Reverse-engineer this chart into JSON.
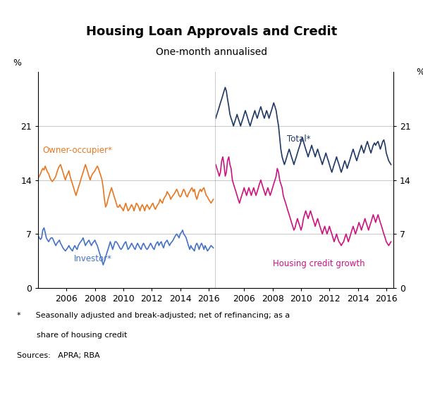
{
  "title": "Housing Loan Approvals and Credit",
  "subtitle": "One-month annualised",
  "ylabel_left": "%",
  "ylabel_right": "%",
  "ylim": [
    0,
    28
  ],
  "yticks": [
    0,
    7,
    14,
    21
  ],
  "footnote1": "*      Seasonally adjusted and break-adjusted; net of refinancing; as a",
  "footnote2": "        share of housing credit",
  "footnote3": "Sources:   APRA; RBA",
  "colors": {
    "owner_occupier": "#E87722",
    "investor": "#4472C4",
    "total": "#1F3864",
    "housing_credit": "#CC1480"
  },
  "left_panel": {
    "xlim": [
      2004.0,
      2016.5
    ],
    "xticks": [
      2006,
      2008,
      2010,
      2012,
      2014,
      2016
    ],
    "owner_occupier": {
      "x": [
        2004.0,
        2004.08,
        2004.17,
        2004.25,
        2004.33,
        2004.42,
        2004.5,
        2004.58,
        2004.67,
        2004.75,
        2004.83,
        2004.92,
        2005.0,
        2005.08,
        2005.17,
        2005.25,
        2005.33,
        2005.42,
        2005.5,
        2005.58,
        2005.67,
        2005.75,
        2005.83,
        2005.92,
        2006.0,
        2006.08,
        2006.17,
        2006.25,
        2006.33,
        2006.42,
        2006.5,
        2006.58,
        2006.67,
        2006.75,
        2006.83,
        2006.92,
        2007.0,
        2007.08,
        2007.17,
        2007.25,
        2007.33,
        2007.42,
        2007.5,
        2007.58,
        2007.67,
        2007.75,
        2007.83,
        2007.92,
        2008.0,
        2008.08,
        2008.17,
        2008.25,
        2008.33,
        2008.42,
        2008.5,
        2008.58,
        2008.67,
        2008.75,
        2008.83,
        2008.92,
        2009.0,
        2009.08,
        2009.17,
        2009.25,
        2009.33,
        2009.42,
        2009.5,
        2009.58,
        2009.67,
        2009.75,
        2009.83,
        2009.92,
        2010.0,
        2010.08,
        2010.17,
        2010.25,
        2010.33,
        2010.42,
        2010.5,
        2010.58,
        2010.67,
        2010.75,
        2010.83,
        2010.92,
        2011.0,
        2011.08,
        2011.17,
        2011.25,
        2011.33,
        2011.42,
        2011.5,
        2011.58,
        2011.67,
        2011.75,
        2011.83,
        2011.92,
        2012.0,
        2012.08,
        2012.17,
        2012.25,
        2012.33,
        2012.42,
        2012.5,
        2012.58,
        2012.67,
        2012.75,
        2012.83,
        2012.92,
        2013.0,
        2013.08,
        2013.17,
        2013.25,
        2013.33,
        2013.42,
        2013.5,
        2013.58,
        2013.67,
        2013.75,
        2013.83,
        2013.92,
        2014.0,
        2014.08,
        2014.17,
        2014.25,
        2014.33,
        2014.42,
        2014.5,
        2014.58,
        2014.67,
        2014.75,
        2014.83,
        2014.92,
        2015.0,
        2015.08,
        2015.17,
        2015.25,
        2015.33,
        2015.42,
        2015.5,
        2015.58,
        2015.67,
        2015.75,
        2015.83,
        2015.92,
        2016.0,
        2016.17,
        2016.33
      ],
      "y": [
        14.2,
        14.5,
        14.8,
        15.2,
        15.5,
        15.3,
        15.8,
        15.4,
        15.0,
        14.8,
        14.3,
        14.0,
        13.8,
        14.0,
        14.2,
        14.5,
        15.0,
        15.5,
        15.8,
        16.0,
        15.5,
        15.0,
        14.5,
        14.0,
        14.5,
        14.8,
        15.2,
        14.5,
        14.0,
        13.5,
        13.0,
        12.5,
        12.0,
        12.5,
        13.0,
        13.5,
        14.0,
        14.5,
        15.0,
        15.5,
        16.0,
        15.5,
        15.0,
        14.5,
        14.0,
        14.5,
        14.8,
        15.0,
        15.2,
        15.5,
        15.8,
        15.5,
        15.0,
        14.5,
        14.0,
        13.0,
        11.5,
        10.5,
        10.8,
        11.5,
        12.0,
        12.5,
        13.0,
        12.5,
        12.0,
        11.5,
        11.0,
        10.5,
        10.5,
        10.8,
        10.5,
        10.3,
        10.0,
        10.5,
        11.0,
        10.5,
        10.0,
        10.2,
        10.5,
        10.8,
        10.5,
        10.0,
        10.5,
        11.0,
        10.8,
        10.5,
        10.0,
        10.5,
        10.8,
        10.5,
        10.0,
        10.5,
        10.8,
        10.5,
        10.2,
        10.5,
        10.8,
        11.0,
        10.5,
        10.2,
        10.5,
        10.8,
        11.0,
        11.5,
        11.2,
        11.0,
        11.5,
        11.8,
        12.0,
        12.5,
        12.2,
        12.0,
        11.5,
        11.8,
        12.0,
        12.2,
        12.5,
        12.8,
        12.5,
        12.0,
        11.8,
        12.0,
        12.5,
        12.8,
        12.5,
        12.0,
        11.8,
        12.2,
        12.5,
        12.8,
        13.0,
        12.5,
        12.8,
        12.0,
        11.5,
        12.0,
        12.5,
        12.8,
        12.5,
        12.8,
        13.0,
        12.5,
        12.0,
        11.8,
        11.5,
        11.0,
        11.5
      ]
    },
    "investor": {
      "x": [
        2004.0,
        2004.08,
        2004.17,
        2004.25,
        2004.33,
        2004.42,
        2004.5,
        2004.58,
        2004.67,
        2004.75,
        2004.83,
        2004.92,
        2005.0,
        2005.08,
        2005.17,
        2005.25,
        2005.33,
        2005.42,
        2005.5,
        2005.58,
        2005.67,
        2005.75,
        2005.83,
        2005.92,
        2006.0,
        2006.08,
        2006.17,
        2006.25,
        2006.33,
        2006.42,
        2006.5,
        2006.58,
        2006.67,
        2006.75,
        2006.83,
        2006.92,
        2007.0,
        2007.08,
        2007.17,
        2007.25,
        2007.33,
        2007.42,
        2007.5,
        2007.58,
        2007.67,
        2007.75,
        2007.83,
        2007.92,
        2008.0,
        2008.08,
        2008.17,
        2008.25,
        2008.33,
        2008.42,
        2008.5,
        2008.58,
        2008.67,
        2008.75,
        2008.83,
        2008.92,
        2009.0,
        2009.08,
        2009.17,
        2009.25,
        2009.33,
        2009.42,
        2009.5,
        2009.58,
        2009.67,
        2009.75,
        2009.83,
        2009.92,
        2010.0,
        2010.08,
        2010.17,
        2010.25,
        2010.33,
        2010.42,
        2010.5,
        2010.58,
        2010.67,
        2010.75,
        2010.83,
        2010.92,
        2011.0,
        2011.08,
        2011.17,
        2011.25,
        2011.33,
        2011.42,
        2011.5,
        2011.58,
        2011.67,
        2011.75,
        2011.83,
        2011.92,
        2012.0,
        2012.08,
        2012.17,
        2012.25,
        2012.33,
        2012.42,
        2012.5,
        2012.58,
        2012.67,
        2012.75,
        2012.83,
        2012.92,
        2013.0,
        2013.08,
        2013.17,
        2013.25,
        2013.33,
        2013.42,
        2013.5,
        2013.58,
        2013.67,
        2013.75,
        2013.83,
        2013.92,
        2014.0,
        2014.08,
        2014.17,
        2014.25,
        2014.33,
        2014.42,
        2014.5,
        2014.58,
        2014.67,
        2014.75,
        2014.83,
        2014.92,
        2015.0,
        2015.08,
        2015.17,
        2015.25,
        2015.33,
        2015.42,
        2015.5,
        2015.58,
        2015.67,
        2015.75,
        2015.83,
        2015.92,
        2016.0,
        2016.17,
        2016.33
      ],
      "y": [
        6.8,
        6.5,
        6.3,
        6.5,
        7.5,
        7.8,
        7.2,
        6.5,
        6.2,
        6.0,
        6.3,
        6.5,
        6.5,
        6.2,
        5.8,
        5.5,
        5.8,
        6.0,
        6.2,
        5.8,
        5.5,
        5.2,
        5.0,
        4.8,
        5.0,
        5.2,
        5.5,
        5.2,
        5.0,
        4.8,
        5.2,
        5.5,
        5.2,
        5.0,
        5.5,
        5.8,
        6.0,
        6.2,
        6.5,
        6.0,
        5.5,
        5.8,
        6.0,
        6.2,
        5.8,
        5.5,
        5.8,
        6.0,
        6.2,
        5.8,
        5.5,
        5.0,
        4.5,
        4.0,
        3.5,
        3.0,
        3.5,
        4.0,
        4.5,
        5.0,
        5.5,
        6.0,
        5.5,
        5.0,
        5.5,
        6.0,
        6.0,
        5.8,
        5.5,
        5.2,
        5.0,
        5.2,
        5.5,
        5.8,
        6.0,
        5.5,
        5.0,
        5.2,
        5.5,
        5.8,
        5.5,
        5.2,
        5.0,
        5.5,
        5.8,
        5.5,
        5.2,
        5.0,
        5.5,
        5.8,
        5.5,
        5.2,
        5.0,
        5.2,
        5.5,
        5.8,
        5.5,
        5.2,
        5.0,
        5.5,
        5.8,
        6.0,
        5.5,
        5.8,
        6.0,
        5.5,
        5.2,
        5.8,
        6.0,
        6.2,
        5.8,
        5.5,
        5.8,
        6.0,
        6.2,
        6.5,
        6.8,
        7.0,
        6.8,
        6.5,
        7.0,
        7.2,
        7.5,
        7.0,
        6.8,
        6.5,
        6.0,
        5.5,
        5.0,
        5.5,
        5.2,
        5.0,
        4.8,
        5.5,
        5.8,
        5.5,
        5.0,
        5.5,
        5.8,
        5.5,
        5.0,
        5.5,
        5.2,
        4.8,
        5.0,
        5.5,
        5.2
      ]
    }
  },
  "right_panel": {
    "xlim": [
      2004.0,
      2016.5
    ],
    "xticks": [
      2006,
      2008,
      2010,
      2012,
      2014,
      2016
    ],
    "total": {
      "x": [
        2004.0,
        2004.08,
        2004.17,
        2004.25,
        2004.33,
        2004.42,
        2004.5,
        2004.58,
        2004.67,
        2004.75,
        2004.83,
        2004.92,
        2005.0,
        2005.08,
        2005.17,
        2005.25,
        2005.33,
        2005.42,
        2005.5,
        2005.58,
        2005.67,
        2005.75,
        2005.83,
        2005.92,
        2006.0,
        2006.08,
        2006.17,
        2006.25,
        2006.33,
        2006.42,
        2006.5,
        2006.58,
        2006.67,
        2006.75,
        2006.83,
        2006.92,
        2007.0,
        2007.08,
        2007.17,
        2007.25,
        2007.33,
        2007.42,
        2007.5,
        2007.58,
        2007.67,
        2007.75,
        2007.83,
        2007.92,
        2008.0,
        2008.08,
        2008.17,
        2008.25,
        2008.33,
        2008.42,
        2008.5,
        2008.58,
        2008.67,
        2008.75,
        2008.83,
        2008.92,
        2009.0,
        2009.08,
        2009.17,
        2009.25,
        2009.33,
        2009.42,
        2009.5,
        2009.58,
        2009.67,
        2009.75,
        2009.83,
        2009.92,
        2010.0,
        2010.08,
        2010.17,
        2010.25,
        2010.33,
        2010.42,
        2010.5,
        2010.58,
        2010.67,
        2010.75,
        2010.83,
        2010.92,
        2011.0,
        2011.08,
        2011.17,
        2011.25,
        2011.33,
        2011.42,
        2011.5,
        2011.58,
        2011.67,
        2011.75,
        2011.83,
        2011.92,
        2012.0,
        2012.08,
        2012.17,
        2012.25,
        2012.33,
        2012.42,
        2012.5,
        2012.58,
        2012.67,
        2012.75,
        2012.83,
        2012.92,
        2013.0,
        2013.08,
        2013.17,
        2013.25,
        2013.33,
        2013.42,
        2013.5,
        2013.58,
        2013.67,
        2013.75,
        2013.83,
        2013.92,
        2014.0,
        2014.08,
        2014.17,
        2014.25,
        2014.33,
        2014.42,
        2014.5,
        2014.58,
        2014.67,
        2014.75,
        2014.83,
        2014.92,
        2015.0,
        2015.08,
        2015.17,
        2015.25,
        2015.33,
        2015.42,
        2015.5,
        2015.58,
        2015.67,
        2015.75,
        2015.83,
        2015.92,
        2016.0,
        2016.17,
        2016.33
      ],
      "y": [
        22.0,
        22.5,
        23.0,
        23.5,
        24.0,
        24.5,
        25.0,
        25.5,
        26.0,
        25.5,
        24.5,
        23.5,
        22.5,
        22.0,
        21.5,
        21.0,
        21.5,
        22.0,
        22.5,
        22.0,
        21.5,
        21.0,
        21.5,
        22.0,
        22.5,
        23.0,
        22.5,
        22.0,
        21.5,
        21.0,
        21.5,
        22.0,
        22.5,
        23.0,
        22.5,
        22.0,
        22.5,
        23.0,
        23.5,
        23.0,
        22.5,
        22.0,
        22.5,
        23.0,
        22.5,
        22.0,
        22.5,
        23.0,
        23.5,
        24.0,
        23.5,
        23.0,
        22.0,
        21.0,
        19.5,
        18.0,
        17.0,
        16.5,
        16.0,
        16.5,
        17.0,
        17.5,
        18.0,
        17.5,
        17.0,
        16.5,
        16.0,
        16.5,
        17.0,
        17.5,
        18.0,
        18.5,
        19.0,
        19.5,
        19.0,
        18.5,
        18.0,
        17.5,
        17.0,
        17.5,
        18.0,
        18.5,
        18.0,
        17.5,
        17.0,
        17.5,
        18.0,
        17.5,
        17.0,
        16.5,
        16.0,
        16.5,
        17.0,
        17.5,
        17.0,
        16.5,
        16.0,
        15.5,
        15.0,
        15.5,
        16.0,
        16.5,
        17.0,
        16.5,
        16.0,
        15.5,
        15.0,
        15.5,
        16.0,
        16.5,
        16.0,
        15.5,
        16.0,
        16.5,
        17.0,
        17.5,
        18.0,
        17.5,
        17.0,
        16.5,
        17.0,
        17.5,
        18.0,
        18.5,
        18.0,
        17.5,
        18.0,
        18.5,
        19.0,
        18.5,
        18.0,
        17.5,
        18.0,
        18.5,
        18.8,
        18.5,
        18.8,
        19.0,
        18.5,
        18.0,
        18.5,
        19.0,
        19.2,
        18.5,
        17.5,
        16.5,
        16.0
      ]
    },
    "housing_credit": {
      "x": [
        2004.0,
        2004.08,
        2004.17,
        2004.25,
        2004.33,
        2004.42,
        2004.5,
        2004.58,
        2004.67,
        2004.75,
        2004.83,
        2004.92,
        2005.0,
        2005.08,
        2005.17,
        2005.25,
        2005.33,
        2005.42,
        2005.5,
        2005.58,
        2005.67,
        2005.75,
        2005.83,
        2005.92,
        2006.0,
        2006.08,
        2006.17,
        2006.25,
        2006.33,
        2006.42,
        2006.5,
        2006.58,
        2006.67,
        2006.75,
        2006.83,
        2006.92,
        2007.0,
        2007.08,
        2007.17,
        2007.25,
        2007.33,
        2007.42,
        2007.5,
        2007.58,
        2007.67,
        2007.75,
        2007.83,
        2007.92,
        2008.0,
        2008.08,
        2008.17,
        2008.25,
        2008.33,
        2008.42,
        2008.5,
        2008.58,
        2008.67,
        2008.75,
        2008.83,
        2008.92,
        2009.0,
        2009.08,
        2009.17,
        2009.25,
        2009.33,
        2009.42,
        2009.5,
        2009.58,
        2009.67,
        2009.75,
        2009.83,
        2009.92,
        2010.0,
        2010.08,
        2010.17,
        2010.25,
        2010.33,
        2010.42,
        2010.5,
        2010.58,
        2010.67,
        2010.75,
        2010.83,
        2010.92,
        2011.0,
        2011.08,
        2011.17,
        2011.25,
        2011.33,
        2011.42,
        2011.5,
        2011.58,
        2011.67,
        2011.75,
        2011.83,
        2011.92,
        2012.0,
        2012.08,
        2012.17,
        2012.25,
        2012.33,
        2012.42,
        2012.5,
        2012.58,
        2012.67,
        2012.75,
        2012.83,
        2012.92,
        2013.0,
        2013.08,
        2013.17,
        2013.25,
        2013.33,
        2013.42,
        2013.5,
        2013.58,
        2013.67,
        2013.75,
        2013.83,
        2013.92,
        2014.0,
        2014.08,
        2014.17,
        2014.25,
        2014.33,
        2014.42,
        2014.5,
        2014.58,
        2014.67,
        2014.75,
        2014.83,
        2014.92,
        2015.0,
        2015.08,
        2015.17,
        2015.25,
        2015.33,
        2015.42,
        2015.5,
        2015.58,
        2015.67,
        2015.75,
        2015.83,
        2015.92,
        2016.0,
        2016.17,
        2016.33
      ],
      "y": [
        16.0,
        15.5,
        15.0,
        14.5,
        15.0,
        16.5,
        17.0,
        16.0,
        14.5,
        15.0,
        16.5,
        17.0,
        16.0,
        15.5,
        14.0,
        13.5,
        13.0,
        12.5,
        12.0,
        11.5,
        11.0,
        11.5,
        12.0,
        12.5,
        13.0,
        12.5,
        12.0,
        12.5,
        13.0,
        12.5,
        12.0,
        12.5,
        13.0,
        12.5,
        12.0,
        12.5,
        13.0,
        13.5,
        14.0,
        13.5,
        13.0,
        12.5,
        12.0,
        12.5,
        13.0,
        12.5,
        12.0,
        12.5,
        13.0,
        13.5,
        14.0,
        14.5,
        15.5,
        15.0,
        14.0,
        13.5,
        13.0,
        12.0,
        11.5,
        11.0,
        10.5,
        10.0,
        9.5,
        9.0,
        8.5,
        8.0,
        7.5,
        7.8,
        8.5,
        9.0,
        8.5,
        8.0,
        7.5,
        8.0,
        9.0,
        9.5,
        10.0,
        9.5,
        9.0,
        9.5,
        10.0,
        9.5,
        9.0,
        8.5,
        8.0,
        8.5,
        9.0,
        8.5,
        8.0,
        7.5,
        7.0,
        7.5,
        8.0,
        7.5,
        7.0,
        7.5,
        8.0,
        7.5,
        7.0,
        6.5,
        6.0,
        6.5,
        7.0,
        6.5,
        6.0,
        5.8,
        5.5,
        5.8,
        6.0,
        6.5,
        7.0,
        6.5,
        6.0,
        6.5,
        7.0,
        7.5,
        8.0,
        7.5,
        7.0,
        7.5,
        8.0,
        8.5,
        8.0,
        7.5,
        8.0,
        8.5,
        9.0,
        8.5,
        8.0,
        7.5,
        8.0,
        8.5,
        9.0,
        9.5,
        9.0,
        8.5,
        9.0,
        9.5,
        9.0,
        8.5,
        8.0,
        7.5,
        7.0,
        6.5,
        6.0,
        5.5,
        6.0
      ]
    }
  }
}
